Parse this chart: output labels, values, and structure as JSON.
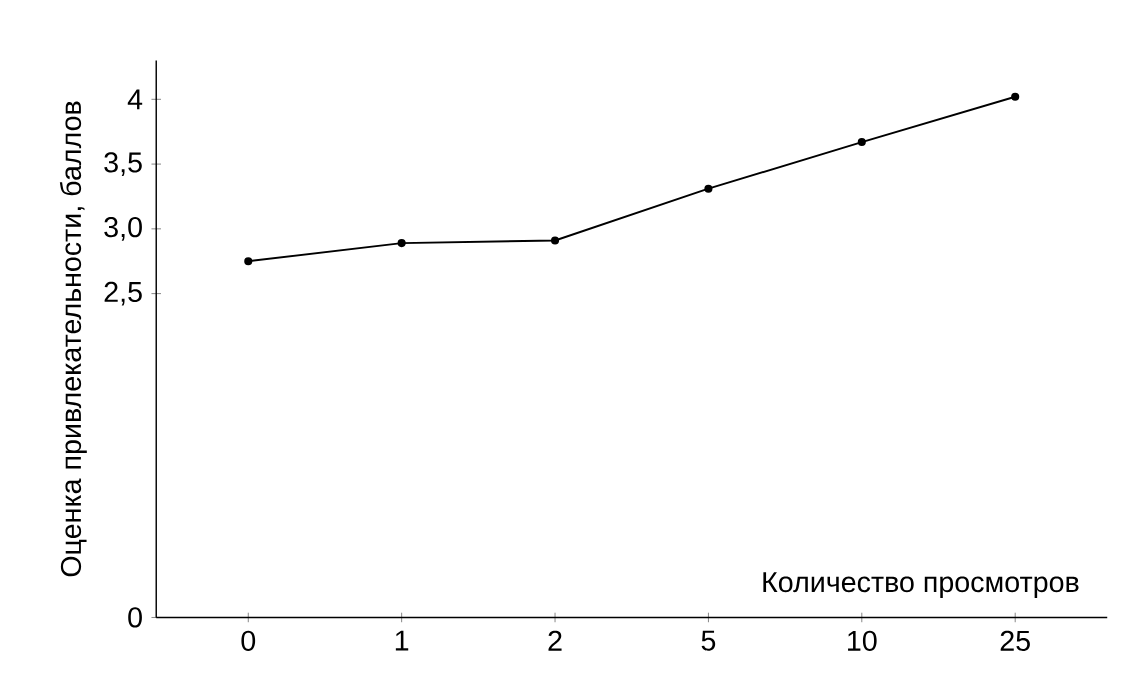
{
  "chart_data": {
    "type": "line",
    "xlabel": "Количество просмотров",
    "ylabel": "Оценка привлекательности, баллов",
    "categories": [
      "0",
      "1",
      "2",
      "5",
      "10",
      "25"
    ],
    "series": [
      {
        "color": "#000000",
        "values": [
          2.75,
          2.89,
          2.91,
          3.31,
          3.67,
          4.02
        ]
      }
    ],
    "ylim": [
      0,
      4.3
    ],
    "yticks": [
      0,
      {
        "value": 2.5,
        "label": "2,5"
      },
      {
        "value": 3.0,
        "label": "3,0"
      },
      {
        "value": 3.5,
        "label": "3,5"
      },
      4
    ],
    "marker": "circle",
    "line_style": "solid",
    "grid": false
  }
}
